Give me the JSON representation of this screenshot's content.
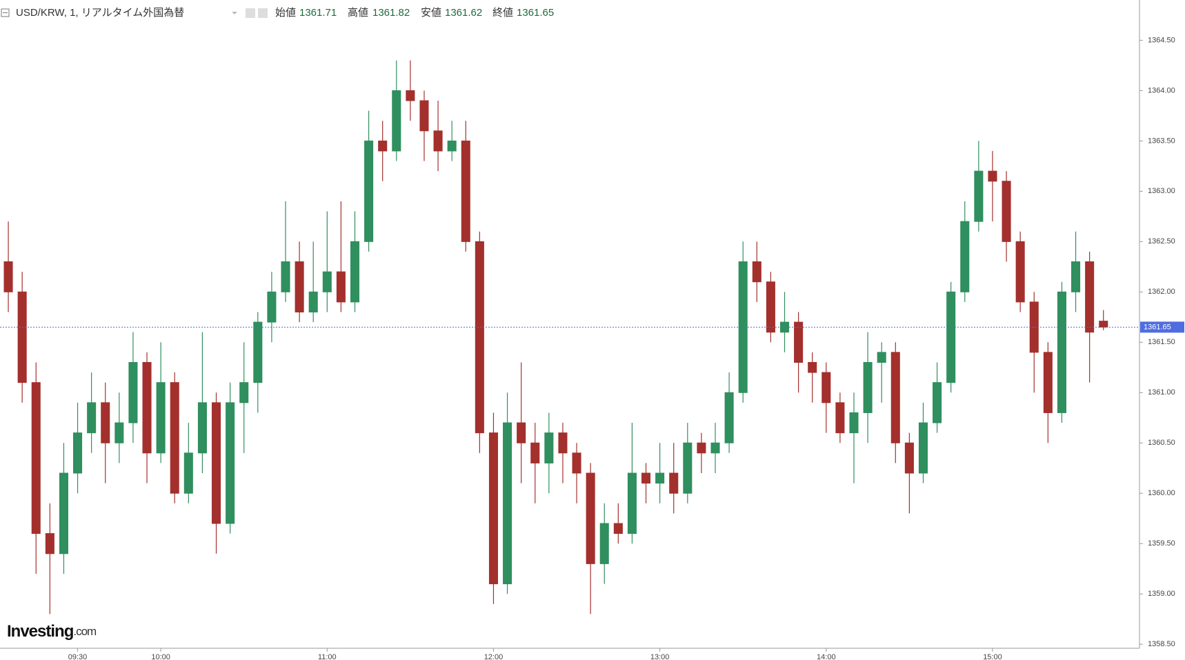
{
  "header": {
    "symbol": "USD/KRW, 1, リアルタイム外国為替",
    "open_label": "始値",
    "high_label": "高値",
    "low_label": "安値",
    "close_label": "終値"
  },
  "logo": {
    "name": "Investing",
    "suffix": ".com"
  },
  "chart_data": {
    "type": "candlestick",
    "x": [
      "09:05",
      "09:10",
      "09:15",
      "09:20",
      "09:25",
      "09:30",
      "09:35",
      "09:40",
      "09:45",
      "09:50",
      "09:55",
      "10:00",
      "10:05",
      "10:10",
      "10:15",
      "10:20",
      "10:25",
      "10:30",
      "10:35",
      "10:40",
      "10:45",
      "10:50",
      "10:55",
      "11:00",
      "11:05",
      "11:10",
      "11:15",
      "11:20",
      "11:25",
      "11:30",
      "11:35",
      "11:40",
      "11:45",
      "11:50",
      "11:55",
      "12:00",
      "12:05",
      "12:10",
      "12:15",
      "12:20",
      "12:25",
      "12:30",
      "12:35",
      "12:40",
      "12:45",
      "12:50",
      "12:55",
      "13:00",
      "13:05",
      "13:10",
      "13:15",
      "13:20",
      "13:25",
      "13:30",
      "13:35",
      "13:40",
      "13:45",
      "13:50",
      "13:55",
      "14:00",
      "14:05",
      "14:10",
      "14:15",
      "14:20",
      "14:25",
      "14:30",
      "14:35",
      "14:40",
      "14:45",
      "14:50",
      "14:55",
      "15:00",
      "15:05",
      "15:10",
      "15:15",
      "15:20",
      "15:25",
      "15:30",
      "15:35",
      "15:40"
    ],
    "open": [
      1362.3,
      1362.0,
      1361.1,
      1359.6,
      1359.4,
      1360.2,
      1360.6,
      1360.9,
      1360.5,
      1360.7,
      1361.3,
      1360.4,
      1361.1,
      1360.0,
      1360.4,
      1360.9,
      1359.7,
      1360.9,
      1361.1,
      1361.7,
      1362.0,
      1362.3,
      1361.8,
      1362.0,
      1362.2,
      1361.9,
      1362.5,
      1363.5,
      1363.4,
      1364.0,
      1363.9,
      1363.6,
      1363.4,
      1363.5,
      1362.5,
      1360.6,
      1359.1,
      1360.7,
      1360.5,
      1360.3,
      1360.6,
      1360.4,
      1360.2,
      1359.3,
      1359.7,
      1359.6,
      1360.2,
      1360.1,
      1360.2,
      1360.0,
      1360.5,
      1360.4,
      1360.5,
      1361.0,
      1362.3,
      1362.1,
      1361.6,
      1361.7,
      1361.3,
      1361.2,
      1360.9,
      1360.6,
      1360.8,
      1361.3,
      1361.4,
      1360.5,
      1360.2,
      1360.7,
      1361.1,
      1362.0,
      1362.7,
      1363.2,
      1363.1,
      1362.5,
      1361.9,
      1361.4,
      1360.8,
      1362.0,
      1362.3,
      1361.71
    ],
    "high": [
      1362.7,
      1362.2,
      1361.3,
      1359.9,
      1360.5,
      1360.9,
      1361.2,
      1361.1,
      1361.0,
      1361.6,
      1361.4,
      1361.5,
      1361.2,
      1360.7,
      1361.6,
      1361.0,
      1361.1,
      1361.5,
      1361.8,
      1362.2,
      1362.9,
      1362.5,
      1362.5,
      1362.8,
      1362.9,
      1362.8,
      1363.8,
      1363.7,
      1364.3,
      1364.3,
      1364.0,
      1363.9,
      1363.7,
      1363.7,
      1362.6,
      1360.8,
      1361.0,
      1361.3,
      1360.7,
      1360.8,
      1360.7,
      1360.5,
      1360.3,
      1359.9,
      1359.9,
      1360.7,
      1360.3,
      1360.5,
      1360.5,
      1360.7,
      1360.6,
      1360.7,
      1361.2,
      1362.5,
      1362.5,
      1362.2,
      1362.0,
      1361.8,
      1361.4,
      1361.3,
      1361.0,
      1361.0,
      1361.6,
      1361.5,
      1361.5,
      1360.6,
      1360.9,
      1361.3,
      1362.1,
      1362.9,
      1363.5,
      1363.4,
      1363.2,
      1362.6,
      1362.0,
      1361.5,
      1362.1,
      1362.6,
      1362.4,
      1361.82
    ],
    "low": [
      1361.8,
      1360.9,
      1359.2,
      1358.8,
      1359.2,
      1360.0,
      1360.4,
      1360.1,
      1360.3,
      1360.5,
      1360.1,
      1360.3,
      1359.9,
      1359.9,
      1360.2,
      1359.4,
      1359.6,
      1360.4,
      1360.8,
      1361.5,
      1361.9,
      1361.7,
      1361.7,
      1361.8,
      1361.8,
      1361.8,
      1362.4,
      1363.1,
      1363.3,
      1363.7,
      1363.3,
      1363.2,
      1363.3,
      1362.4,
      1360.4,
      1358.9,
      1359.0,
      1360.1,
      1359.9,
      1360.0,
      1360.1,
      1359.9,
      1358.8,
      1359.1,
      1359.5,
      1359.5,
      1359.9,
      1359.9,
      1359.8,
      1359.9,
      1360.2,
      1360.2,
      1360.4,
      1360.9,
      1361.9,
      1361.5,
      1361.4,
      1361.0,
      1360.9,
      1360.6,
      1360.5,
      1360.1,
      1360.5,
      1360.9,
      1360.3,
      1359.8,
      1360.1,
      1360.6,
      1361.0,
      1361.9,
      1362.6,
      1362.7,
      1362.3,
      1361.8,
      1361.0,
      1360.5,
      1360.7,
      1361.8,
      1361.1,
      1361.62
    ],
    "close": [
      1362.0,
      1361.1,
      1359.6,
      1359.4,
      1360.2,
      1360.6,
      1360.9,
      1360.5,
      1360.7,
      1361.3,
      1360.4,
      1361.1,
      1360.0,
      1360.4,
      1360.9,
      1359.7,
      1360.9,
      1361.1,
      1361.7,
      1362.0,
      1362.3,
      1361.8,
      1362.0,
      1362.2,
      1361.9,
      1362.5,
      1363.5,
      1363.4,
      1364.0,
      1363.9,
      1363.6,
      1363.4,
      1363.5,
      1362.5,
      1360.6,
      1359.1,
      1360.7,
      1360.5,
      1360.3,
      1360.6,
      1360.4,
      1360.2,
      1359.3,
      1359.7,
      1359.6,
      1360.2,
      1360.1,
      1360.2,
      1360.0,
      1360.5,
      1360.4,
      1360.5,
      1361.0,
      1362.3,
      1362.1,
      1361.6,
      1361.7,
      1361.3,
      1361.2,
      1360.9,
      1360.6,
      1360.8,
      1361.3,
      1361.4,
      1360.5,
      1360.2,
      1360.7,
      1361.1,
      1362.0,
      1362.7,
      1363.2,
      1363.1,
      1362.5,
      1361.9,
      1361.4,
      1360.8,
      1362.0,
      1362.3,
      1361.6,
      1361.65
    ],
    "up_color": "#2f8f5e",
    "down_color": "#a3302c",
    "last_price_color": "#4f6de0",
    "xlim": [
      "09:02",
      "15:53"
    ],
    "xticks": [
      "09:30",
      "10:00",
      "11:00",
      "12:00",
      "13:00",
      "14:00",
      "15:00"
    ],
    "ylim": [
      1358.46,
      1364.9
    ],
    "yticks": [
      {
        "value": 1358.5,
        "label": "1358.50"
      },
      {
        "value": 1359,
        "label": "1359.00"
      },
      {
        "value": 1359.5,
        "label": "1359.50"
      },
      {
        "value": 1360,
        "label": "1360.00"
      },
      {
        "value": 1360.5,
        "label": "1360.50"
      },
      {
        "value": 1361,
        "label": "1361.00"
      },
      {
        "value": 1361.5,
        "label": "1361.50"
      },
      {
        "value": 1362,
        "label": "1362.00"
      },
      {
        "value": 1362.5,
        "label": "1362.50"
      },
      {
        "value": 1363,
        "label": "1363.00"
      },
      {
        "value": 1363.5,
        "label": "1363.50"
      },
      {
        "value": 1364,
        "label": "1364.00"
      },
      {
        "value": 1364.5,
        "label": "1364.50"
      }
    ]
  }
}
